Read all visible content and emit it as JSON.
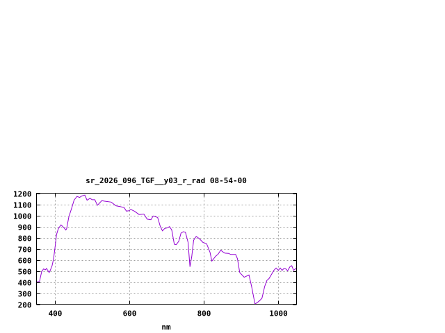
{
  "chart_data": {
    "type": "line",
    "title": "sr_2026_096_TGF__y03_r_rad 08-54-00",
    "xlabel": "nm",
    "ylabel": "",
    "xlim": [
      350,
      1050
    ],
    "ylim": [
      200,
      1200
    ],
    "xticks": [
      400,
      600,
      800,
      1000
    ],
    "yticks": [
      200,
      300,
      400,
      500,
      600,
      700,
      800,
      900,
      1000,
      1100,
      1200
    ],
    "grid": true,
    "line_color": "#9400d3",
    "series": [
      {
        "x": [
          350,
          358,
          364,
          369,
          374,
          377,
          384,
          387,
          392,
          396,
          400,
          404,
          409,
          416,
          423,
          429,
          431,
          437,
          445,
          451,
          459,
          466,
          472,
          480,
          486,
          494,
          500,
          507,
          514,
          526,
          532,
          551,
          564,
          576,
          586,
          592,
          598,
          604,
          614,
          626,
          639,
          648,
          658,
          664,
          676,
          683,
          689,
          695,
          701,
          708,
          714,
          721,
          726,
          733,
          739,
          745,
          751,
          758,
          763,
          768,
          773,
          780,
          789,
          798,
          808,
          817,
          822,
          832,
          839,
          846,
          851,
          857,
          867,
          873,
          886,
          891,
          897,
          909,
          922,
          929,
          938,
          945,
          951,
          957,
          964,
          970,
          976,
          989,
          995,
          1001,
          1006,
          1011,
          1016,
          1021,
          1026,
          1032,
          1037,
          1042,
          1050
        ],
        "y": [
          401,
          405,
          495,
          518,
          510,
          522,
          485,
          505,
          547,
          610,
          715,
          830,
          882,
          915,
          892,
          869,
          880,
          987,
          1070,
          1137,
          1171,
          1162,
          1175,
          1183,
          1137,
          1154,
          1141,
          1141,
          1091,
          1133,
          1129,
          1120,
          1087,
          1079,
          1070,
          1039,
          1041,
          1054,
          1037,
          1008,
          1012,
          966,
          961,
          995,
          982,
          903,
          861,
          882,
          886,
          899,
          869,
          740,
          736,
          767,
          840,
          853,
          849,
          757,
          537,
          631,
          777,
          811,
          788,
          756,
          744,
          669,
          589,
          631,
          652,
          687,
          673,
          660,
          658,
          648,
          648,
          610,
          485,
          443,
          464,
          359,
          202,
          217,
          233,
          255,
          359,
          414,
          432,
          505,
          526,
          505,
          526,
          505,
          522,
          518,
          501,
          537,
          547,
          505,
          526
        ]
      }
    ]
  }
}
